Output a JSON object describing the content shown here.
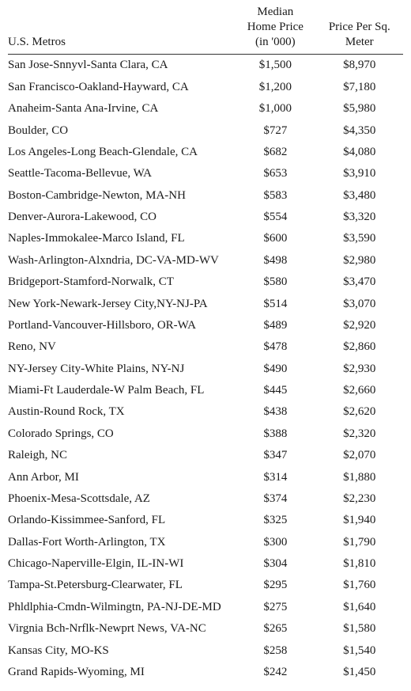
{
  "table": {
    "type": "table",
    "background_color": "#ffffff",
    "text_color": "#1a1a1a",
    "header_border_color": "#333333",
    "font_family": "Georgia, Times New Roman, serif",
    "header_fontsize": 15,
    "body_fontsize": 15,
    "columns": [
      {
        "key": "metro",
        "label": "U.S. Metros",
        "align": "left",
        "width_pct": 58
      },
      {
        "key": "median_price",
        "label": "Median Home Price (in '000)",
        "align": "center",
        "width_pct": 21
      },
      {
        "key": "price_per_sqm",
        "label": "Price Per Sq. Meter",
        "align": "center",
        "width_pct": 21
      }
    ],
    "header_labels": {
      "metro": "U.S. Metros",
      "median_price_l1": "Median",
      "median_price_l2": "Home Price",
      "median_price_l3": "(in '000)",
      "psm_l1": "Price Per Sq.",
      "psm_l2": "Meter"
    },
    "rows": [
      {
        "metro": "San Jose-Snnyvl-Santa Clara, CA",
        "median_price": "$1,500",
        "price_per_sqm": "$8,970"
      },
      {
        "metro": "San Francisco-Oakland-Hayward, CA",
        "median_price": "$1,200",
        "price_per_sqm": "$7,180"
      },
      {
        "metro": "Anaheim-Santa Ana-Irvine, CA",
        "median_price": "$1,000",
        "price_per_sqm": "$5,980"
      },
      {
        "metro": "Boulder, CO",
        "median_price": "$727",
        "price_per_sqm": "$4,350"
      },
      {
        "metro": "Los Angeles-Long Beach-Glendale, CA",
        "median_price": "$682",
        "price_per_sqm": "$4,080"
      },
      {
        "metro": "Seattle-Tacoma-Bellevue, WA",
        "median_price": "$653",
        "price_per_sqm": "$3,910"
      },
      {
        "metro": "Boston-Cambridge-Newton, MA-NH",
        "median_price": "$583",
        "price_per_sqm": "$3,480"
      },
      {
        "metro": "Denver-Aurora-Lakewood, CO",
        "median_price": "$554",
        "price_per_sqm": "$3,320"
      },
      {
        "metro": "Naples-Immokalee-Marco Island, FL",
        "median_price": "$600",
        "price_per_sqm": "$3,590"
      },
      {
        "metro": "Wash-Arlington-Alxndria, DC-VA-MD-WV",
        "median_price": "$498",
        "price_per_sqm": "$2,980"
      },
      {
        "metro": "Bridgeport-Stamford-Norwalk, CT",
        "median_price": "$580",
        "price_per_sqm": "$3,470"
      },
      {
        "metro": "New York-Newark-Jersey City,NY-NJ-PA",
        "median_price": "$514",
        "price_per_sqm": "$3,070"
      },
      {
        "metro": "Portland-Vancouver-Hillsboro, OR-WA",
        "median_price": "$489",
        "price_per_sqm": "$2,920"
      },
      {
        "metro": "Reno, NV",
        "median_price": "$478",
        "price_per_sqm": "$2,860"
      },
      {
        "metro": "NY-Jersey City-White Plains, NY-NJ",
        "median_price": "$490",
        "price_per_sqm": "$2,930"
      },
      {
        "metro": "Miami-Ft Lauderdale-W Palm Beach, FL",
        "median_price": "$445",
        "price_per_sqm": "$2,660"
      },
      {
        "metro": "Austin-Round Rock, TX",
        "median_price": "$438",
        "price_per_sqm": "$2,620"
      },
      {
        "metro": "Colorado Springs, CO",
        "median_price": "$388",
        "price_per_sqm": "$2,320"
      },
      {
        "metro": "Raleigh, NC",
        "median_price": "$347",
        "price_per_sqm": "$2,070"
      },
      {
        "metro": "Ann Arbor, MI",
        "median_price": "$314",
        "price_per_sqm": "$1,880"
      },
      {
        "metro": "Phoenix-Mesa-Scottsdale, AZ",
        "median_price": "$374",
        "price_per_sqm": "$2,230"
      },
      {
        "metro": "Orlando-Kissimmee-Sanford, FL",
        "median_price": "$325",
        "price_per_sqm": "$1,940"
      },
      {
        "metro": "Dallas-Fort Worth-Arlington, TX",
        "median_price": "$300",
        "price_per_sqm": "$1,790"
      },
      {
        "metro": "Chicago-Naperville-Elgin, IL-IN-WI",
        "median_price": "$304",
        "price_per_sqm": "$1,810"
      },
      {
        "metro": "Tampa-St.Petersburg-Clearwater, FL",
        "median_price": "$295",
        "price_per_sqm": "$1,760"
      },
      {
        "metro": "Phldlphia-Cmdn-Wilmingtn, PA-NJ-DE-MD",
        "median_price": "$275",
        "price_per_sqm": "$1,640"
      },
      {
        "metro": "Virgnia Bch-Nrflk-Newprt News, VA-NC",
        "median_price": "$265",
        "price_per_sqm": "$1,580"
      },
      {
        "metro": "Kansas City, MO-KS",
        "median_price": "$258",
        "price_per_sqm": "$1,540"
      },
      {
        "metro": "Grand Rapids-Wyoming, MI",
        "median_price": "$242",
        "price_per_sqm": "$1,450"
      }
    ]
  }
}
